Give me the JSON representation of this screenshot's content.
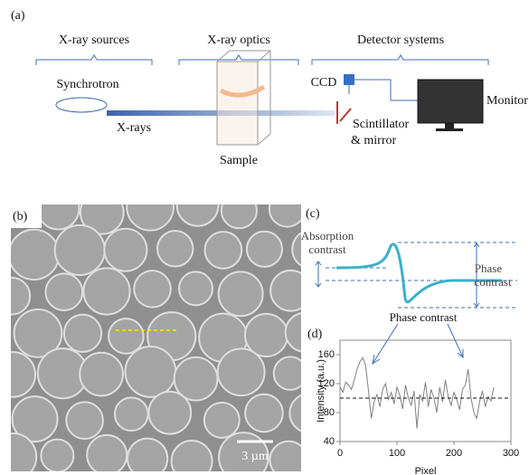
{
  "panel_a": {
    "label": "(a)",
    "groups": [
      "X-ray sources",
      "X-ray optics",
      "Detector systems"
    ],
    "synchrotron": "Synchrotron",
    "beam": "X-rays",
    "sample": "Sample",
    "camera": "CCD",
    "monitor": "Monitor",
    "scintillator": [
      "Scintillator",
      "& mirror"
    ]
  },
  "panel_b": {
    "label": "(b)",
    "scale_bar": "3 µm"
  },
  "panel_c": {
    "label": "(c)",
    "absorption": [
      "Absorption",
      "contrast"
    ],
    "phase": [
      "Phase",
      "contrast"
    ]
  },
  "panel_d": {
    "label": "(d)",
    "annotation": "Phase contrast"
  },
  "chart_data": {
    "type": "line",
    "xlabel": "Pixel",
    "ylabel": "Intensity (a.u.)",
    "color": "#808080",
    "reference_line": 100,
    "x": [
      0,
      5,
      10,
      15,
      20,
      25,
      30,
      35,
      40,
      45,
      50,
      55,
      60,
      65,
      70,
      75,
      80,
      85,
      90,
      95,
      100,
      105,
      110,
      115,
      120,
      125,
      130,
      135,
      140,
      145,
      150,
      155,
      160,
      165,
      170,
      175,
      180,
      185,
      190,
      195,
      200,
      205,
      210,
      215,
      220,
      225,
      230,
      235,
      240,
      245,
      250,
      255,
      260,
      265,
      270
    ],
    "values": [
      115,
      108,
      122,
      118,
      112,
      125,
      140,
      150,
      156,
      145,
      110,
      72,
      95,
      105,
      88,
      112,
      120,
      98,
      108,
      92,
      115,
      104,
      85,
      118,
      100,
      90,
      110,
      58,
      105,
      96,
      122,
      88,
      112,
      100,
      80,
      115,
      95,
      125,
      102,
      90,
      108,
      98,
      84,
      112,
      118,
      140,
      100,
      80,
      72,
      95,
      110,
      88,
      102,
      96,
      115
    ],
    "xlim": [
      0,
      300
    ],
    "xticks": [
      0,
      100,
      200,
      300
    ],
    "ylim": [
      40,
      180
    ],
    "yticks": [
      40,
      80,
      120,
      160
    ]
  }
}
